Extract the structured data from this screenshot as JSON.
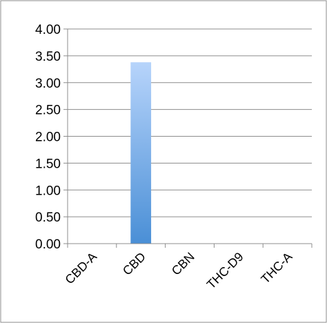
{
  "chart_data": {
    "type": "bar",
    "categories": [
      "CBD-A",
      "CBD",
      "CBN",
      "THC-D9",
      "THC-A"
    ],
    "values": [
      0,
      3.38,
      0,
      0,
      0
    ],
    "yticks": [
      "0.00",
      "0.50",
      "1.00",
      "1.50",
      "2.00",
      "2.50",
      "3.00",
      "3.50",
      "4.00"
    ],
    "ylim": [
      0,
      4
    ],
    "grid": true,
    "legend": "none",
    "colors": {
      "bar_top": "#b7d4fb",
      "bar_bottom": "#4a8fd6",
      "gridline": "#8c8c8c",
      "axis": "#8c8c8c",
      "frame": "#8c8c8c"
    }
  }
}
